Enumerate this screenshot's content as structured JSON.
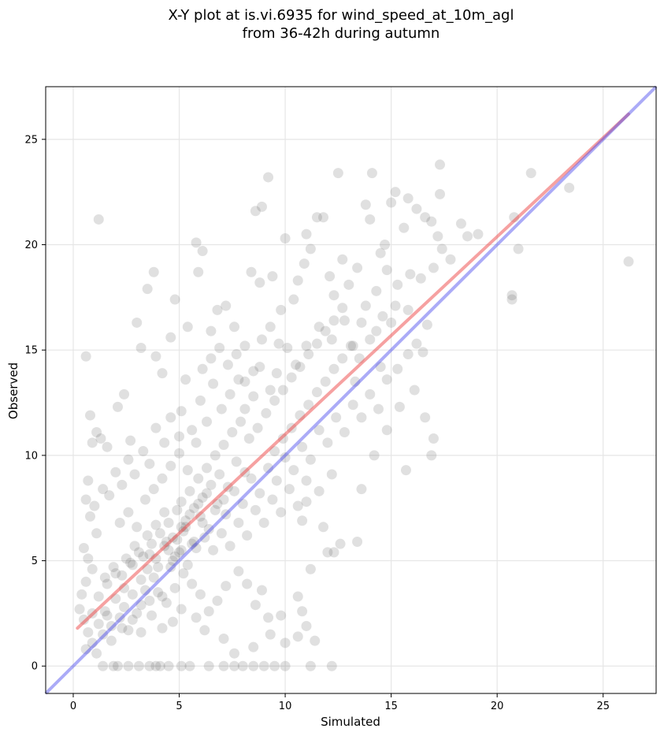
{
  "chart_data": {
    "type": "scatter",
    "title": "X-Y plot at is.vi.6935 for wind_speed_at_10m_agl",
    "subtitle": "from 36-42h during autumn",
    "xlabel": "Simulated",
    "ylabel": "Observed",
    "xlim": [
      -1.3,
      27.5
    ],
    "ylim": [
      -1.3,
      27.5
    ],
    "x_ticks": [
      0,
      5,
      10,
      15,
      20,
      25
    ],
    "y_ticks": [
      0,
      5,
      10,
      15,
      20,
      25
    ],
    "grid": true,
    "colors": {
      "points": "#555555",
      "fit_line": "#ee4444",
      "identity_line": "#4444ee"
    },
    "fit_line": {
      "x": [
        0.2,
        26.2
      ],
      "y": [
        1.8,
        26.2
      ]
    },
    "identity_line": {
      "x": [
        -1.3,
        27.5
      ],
      "y": [
        -1.3,
        27.5
      ]
    },
    "points": [
      [
        1.2,
        21.2
      ],
      [
        0.6,
        14.7
      ],
      [
        0.8,
        11.9
      ],
      [
        1.1,
        11.1
      ],
      [
        1.3,
        10.8
      ],
      [
        1.6,
        10.4
      ],
      [
        0.9,
        10.6
      ],
      [
        2.1,
        12.3
      ],
      [
        2.4,
        12.9
      ],
      [
        2.7,
        10.7
      ],
      [
        3.0,
        16.3
      ],
      [
        3.2,
        15.1
      ],
      [
        3.5,
        17.9
      ],
      [
        3.9,
        14.7
      ],
      [
        3.8,
        18.7
      ],
      [
        4.2,
        13.9
      ],
      [
        4.6,
        15.6
      ],
      [
        4.8,
        17.4
      ],
      [
        5.1,
        12.1
      ],
      [
        5.4,
        16.1
      ],
      [
        5.8,
        20.1
      ],
      [
        6.1,
        19.7
      ],
      [
        5.9,
        18.7
      ],
      [
        6.5,
        15.9
      ],
      [
        6.8,
        16.9
      ],
      [
        7.2,
        17.1
      ],
      [
        7.6,
        16.1
      ],
      [
        8.1,
        15.2
      ],
      [
        8.4,
        18.7
      ],
      [
        8.6,
        21.6
      ],
      [
        8.9,
        21.8
      ],
      [
        9.2,
        23.2
      ],
      [
        9.4,
        18.5
      ],
      [
        8.8,
        18.2
      ],
      [
        9.8,
        16.9
      ],
      [
        10.0,
        20.3
      ],
      [
        10.4,
        17.4
      ],
      [
        10.6,
        18.3
      ],
      [
        10.9,
        19.1
      ],
      [
        11.0,
        20.5
      ],
      [
        11.2,
        19.8
      ],
      [
        11.5,
        21.3
      ],
      [
        11.8,
        21.3
      ],
      [
        12.1,
        18.5
      ],
      [
        12.3,
        17.6
      ],
      [
        12.5,
        23.4
      ],
      [
        12.7,
        19.3
      ],
      [
        13.0,
        18.1
      ],
      [
        13.4,
        18.9
      ],
      [
        13.8,
        21.9
      ],
      [
        14.0,
        21.2
      ],
      [
        14.1,
        23.4
      ],
      [
        14.5,
        19.6
      ],
      [
        14.7,
        20.0
      ],
      [
        15.0,
        22.0
      ],
      [
        15.2,
        22.5
      ],
      [
        15.6,
        20.8
      ],
      [
        15.8,
        22.2
      ],
      [
        16.2,
        21.7
      ],
      [
        16.6,
        21.3
      ],
      [
        16.9,
        21.1
      ],
      [
        17.2,
        20.4
      ],
      [
        17.3,
        23.8
      ],
      [
        17.3,
        22.4
      ],
      [
        17.8,
        19.3
      ],
      [
        18.3,
        21.0
      ],
      [
        18.6,
        20.4
      ],
      [
        19.1,
        20.5
      ],
      [
        20.8,
        21.3
      ],
      [
        21.6,
        23.4
      ],
      [
        23.4,
        22.7
      ],
      [
        26.2,
        19.2
      ],
      [
        20.7,
        17.6
      ],
      [
        20.7,
        17.4
      ],
      [
        21.0,
        19.8
      ],
      [
        17.4,
        19.8
      ],
      [
        17.0,
        18.9
      ],
      [
        16.4,
        18.4
      ],
      [
        15.9,
        18.6
      ],
      [
        15.2,
        17.1
      ],
      [
        14.6,
        16.6
      ],
      [
        14.3,
        15.9
      ],
      [
        13.6,
        16.3
      ],
      [
        13.2,
        15.2
      ],
      [
        12.8,
        16.4
      ],
      [
        12.2,
        15.5
      ],
      [
        11.6,
        16.1
      ],
      [
        11.0,
        15.2
      ],
      [
        10.5,
        14.3
      ],
      [
        10.1,
        15.1
      ],
      [
        9.6,
        13.9
      ],
      [
        9.3,
        13.1
      ],
      [
        8.8,
        14.2
      ],
      [
        8.5,
        12.8
      ],
      [
        8.1,
        12.2
      ],
      [
        7.8,
        13.6
      ],
      [
        7.4,
        12.9
      ],
      [
        7.0,
        12.2
      ],
      [
        6.6,
        13.4
      ],
      [
        6.3,
        11.6
      ],
      [
        6.0,
        12.6
      ],
      [
        5.6,
        11.2
      ],
      [
        5.3,
        13.6
      ],
      [
        5.0,
        10.9
      ],
      [
        4.6,
        11.8
      ],
      [
        4.3,
        10.6
      ],
      [
        3.9,
        11.3
      ],
      [
        3.6,
        9.6
      ],
      [
        3.3,
        10.2
      ],
      [
        2.9,
        9.1
      ],
      [
        2.6,
        9.8
      ],
      [
        2.3,
        8.6
      ],
      [
        2.0,
        9.2
      ],
      [
        1.7,
        8.1
      ],
      [
        1.4,
        8.4
      ],
      [
        1.0,
        7.6
      ],
      [
        0.7,
        8.8
      ],
      [
        0.6,
        7.9
      ],
      [
        0.8,
        7.1
      ],
      [
        1.1,
        6.3
      ],
      [
        0.5,
        5.6
      ],
      [
        0.7,
        5.1
      ],
      [
        0.9,
        4.6
      ],
      [
        0.6,
        4.0
      ],
      [
        0.4,
        3.4
      ],
      [
        0.3,
        2.7
      ],
      [
        0.5,
        2.2
      ],
      [
        0.7,
        1.6
      ],
      [
        0.9,
        1.1
      ],
      [
        1.1,
        0.6
      ],
      [
        0.6,
        0.8
      ],
      [
        1.4,
        0.0
      ],
      [
        1.9,
        0.0
      ],
      [
        2.1,
        0.0
      ],
      [
        2.6,
        0.0
      ],
      [
        3.1,
        0.0
      ],
      [
        3.6,
        0.0
      ],
      [
        3.9,
        0.0
      ],
      [
        4.1,
        0.0
      ],
      [
        4.5,
        0.0
      ],
      [
        5.1,
        0.0
      ],
      [
        5.5,
        0.0
      ],
      [
        6.4,
        0.0
      ],
      [
        7.1,
        0.0
      ],
      [
        7.6,
        0.0
      ],
      [
        8.0,
        0.0
      ],
      [
        8.5,
        0.0
      ],
      [
        9.0,
        0.0
      ],
      [
        9.5,
        0.0
      ],
      [
        10.0,
        0.0
      ],
      [
        11.2,
        0.0
      ],
      [
        12.2,
        0.0
      ],
      [
        7.6,
        0.6
      ],
      [
        8.5,
        0.9
      ],
      [
        10.0,
        1.1
      ],
      [
        10.6,
        1.4
      ],
      [
        11.0,
        1.9
      ],
      [
        11.4,
        1.2
      ],
      [
        9.3,
        1.5
      ],
      [
        7.1,
        1.3
      ],
      [
        6.2,
        1.7
      ],
      [
        5.8,
        2.3
      ],
      [
        5.1,
        2.7
      ],
      [
        4.7,
        2.1
      ],
      [
        4.2,
        1.8
      ],
      [
        3.7,
        2.4
      ],
      [
        3.2,
        1.6
      ],
      [
        2.8,
        2.2
      ],
      [
        2.3,
        1.8
      ],
      [
        1.8,
        1.2
      ],
      [
        1.5,
        2.6
      ],
      [
        1.2,
        3.3
      ],
      [
        1.6,
        3.9
      ],
      [
        2.0,
        4.4
      ],
      [
        2.4,
        3.7
      ],
      [
        2.8,
        4.8
      ],
      [
        3.2,
        4.1
      ],
      [
        3.6,
        5.3
      ],
      [
        4.0,
        4.7
      ],
      [
        4.4,
        5.9
      ],
      [
        4.8,
        5.2
      ],
      [
        5.2,
        6.4
      ],
      [
        5.6,
        5.8
      ],
      [
        6.0,
        7.1
      ],
      [
        6.4,
        6.5
      ],
      [
        6.8,
        7.7
      ],
      [
        7.2,
        7.2
      ],
      [
        7.6,
        8.3
      ],
      [
        8.0,
        7.7
      ],
      [
        8.4,
        8.9
      ],
      [
        8.8,
        8.2
      ],
      [
        9.2,
        9.4
      ],
      [
        9.6,
        8.8
      ],
      [
        10.0,
        9.9
      ],
      [
        10.4,
        9.3
      ],
      [
        10.8,
        10.4
      ],
      [
        11.2,
        9.8
      ],
      [
        11.6,
        11.2
      ],
      [
        12.0,
        10.6
      ],
      [
        12.4,
        11.8
      ],
      [
        12.8,
        11.1
      ],
      [
        13.2,
        12.4
      ],
      [
        13.6,
        11.8
      ],
      [
        14.0,
        12.9
      ],
      [
        14.4,
        12.2
      ],
      [
        14.8,
        13.6
      ],
      [
        15.3,
        14.1
      ],
      [
        15.8,
        14.8
      ],
      [
        16.2,
        15.3
      ],
      [
        16.7,
        16.2
      ],
      [
        13.6,
        8.4
      ],
      [
        14.2,
        10.0
      ],
      [
        14.8,
        11.2
      ],
      [
        15.4,
        12.3
      ],
      [
        15.7,
        9.3
      ],
      [
        16.9,
        10.0
      ],
      [
        17.0,
        10.8
      ],
      [
        16.6,
        11.8
      ],
      [
        16.1,
        13.1
      ],
      [
        16.5,
        14.9
      ],
      [
        11.2,
        4.6
      ],
      [
        12.0,
        5.4
      ],
      [
        12.6,
        5.8
      ],
      [
        13.4,
        5.9
      ],
      [
        12.3,
        5.4
      ],
      [
        11.8,
        6.6
      ],
      [
        10.8,
        6.9
      ],
      [
        11.0,
        7.8
      ],
      [
        12.2,
        9.1
      ],
      [
        11.6,
        8.3
      ],
      [
        10.6,
        3.3
      ],
      [
        10.8,
        2.6
      ],
      [
        9.8,
        2.4
      ],
      [
        9.2,
        2.3
      ],
      [
        8.6,
        2.9
      ],
      [
        8.9,
        3.6
      ],
      [
        8.2,
        3.9
      ],
      [
        7.8,
        4.5
      ],
      [
        7.2,
        3.8
      ],
      [
        6.8,
        3.1
      ],
      [
        6.4,
        2.6
      ],
      [
        6.0,
        3.4
      ],
      [
        5.6,
        3.9
      ],
      [
        5.2,
        4.4
      ],
      [
        4.8,
        3.7
      ],
      [
        4.4,
        3.0
      ],
      [
        4.0,
        3.5
      ],
      [
        3.6,
        3.1
      ],
      [
        3.2,
        2.9
      ],
      [
        2.8,
        3.4
      ],
      [
        2.4,
        2.8
      ],
      [
        2.0,
        3.2
      ],
      [
        1.6,
        2.4
      ],
      [
        1.2,
        2.0
      ],
      [
        0.9,
        2.5
      ],
      [
        1.4,
        1.5
      ],
      [
        1.8,
        1.9
      ],
      [
        2.2,
        2.3
      ],
      [
        2.6,
        1.7
      ],
      [
        3.0,
        2.5
      ],
      [
        3.4,
        3.6
      ],
      [
        3.8,
        4.2
      ],
      [
        4.2,
        3.3
      ],
      [
        4.6,
        4.7
      ],
      [
        5.0,
        5.4
      ],
      [
        5.4,
        4.8
      ],
      [
        5.8,
        5.6
      ],
      [
        6.2,
        6.1
      ],
      [
        6.6,
        5.5
      ],
      [
        7.0,
        6.3
      ],
      [
        7.4,
        5.7
      ],
      [
        7.8,
        6.8
      ],
      [
        8.2,
        6.2
      ],
      [
        8.6,
        7.4
      ],
      [
        9.0,
        6.8
      ],
      [
        9.4,
        7.9
      ],
      [
        9.8,
        7.3
      ],
      [
        10.2,
        8.4
      ],
      [
        10.6,
        7.6
      ],
      [
        11.0,
        8.8
      ],
      [
        5.1,
        7.8
      ],
      [
        5.5,
        8.3
      ],
      [
        5.9,
        8.9
      ],
      [
        6.3,
        9.4
      ],
      [
        6.7,
        10.0
      ],
      [
        7.1,
        10.5
      ],
      [
        7.5,
        11.1
      ],
      [
        7.9,
        11.6
      ],
      [
        8.3,
        10.8
      ],
      [
        8.7,
        11.3
      ],
      [
        4.5,
        6.8
      ],
      [
        4.9,
        7.4
      ],
      [
        5.3,
        6.9
      ],
      [
        5.7,
        7.5
      ],
      [
        6.1,
        8.0
      ],
      [
        6.5,
        8.6
      ],
      [
        6.9,
        9.1
      ],
      [
        7.3,
        8.5
      ],
      [
        7.7,
        9.7
      ],
      [
        8.1,
        9.2
      ],
      [
        3.5,
        6.2
      ],
      [
        3.9,
        6.7
      ],
      [
        4.3,
        7.3
      ],
      [
        4.7,
        6.1
      ],
      [
        5.1,
        6.6
      ],
      [
        5.5,
        7.2
      ],
      [
        5.9,
        7.7
      ],
      [
        6.3,
        8.2
      ],
      [
        6.7,
        7.4
      ],
      [
        7.1,
        7.9
      ],
      [
        2.5,
        5.1
      ],
      [
        2.9,
        5.7
      ],
      [
        3.3,
        5.2
      ],
      [
        3.7,
        5.8
      ],
      [
        4.1,
        6.3
      ],
      [
        4.5,
        5.5
      ],
      [
        4.9,
        6.0
      ],
      [
        5.3,
        6.6
      ],
      [
        5.7,
        5.9
      ],
      [
        6.1,
        6.8
      ],
      [
        1.5,
        4.2
      ],
      [
        1.9,
        4.7
      ],
      [
        2.3,
        4.3
      ],
      [
        2.7,
        4.9
      ],
      [
        3.1,
        5.4
      ],
      [
        3.5,
        4.6
      ],
      [
        3.9,
        5.1
      ],
      [
        4.3,
        5.7
      ],
      [
        4.7,
        5.0
      ],
      [
        5.1,
        5.5
      ],
      [
        9.5,
        10.2
      ],
      [
        9.9,
        10.8
      ],
      [
        10.3,
        11.3
      ],
      [
        10.7,
        11.9
      ],
      [
        11.1,
        12.4
      ],
      [
        11.5,
        13.0
      ],
      [
        11.9,
        13.5
      ],
      [
        12.3,
        14.1
      ],
      [
        12.7,
        14.6
      ],
      [
        13.1,
        15.2
      ],
      [
        9.1,
        12.0
      ],
      [
        9.5,
        12.6
      ],
      [
        9.9,
        13.1
      ],
      [
        10.3,
        13.7
      ],
      [
        10.7,
        14.2
      ],
      [
        11.1,
        14.8
      ],
      [
        11.5,
        15.3
      ],
      [
        11.9,
        15.9
      ],
      [
        12.3,
        16.4
      ],
      [
        12.7,
        17.0
      ],
      [
        6.1,
        14.1
      ],
      [
        6.5,
        14.6
      ],
      [
        6.9,
        15.1
      ],
      [
        7.3,
        14.3
      ],
      [
        7.7,
        14.8
      ],
      [
        8.1,
        13.5
      ],
      [
        8.5,
        14.0
      ],
      [
        8.9,
        15.5
      ],
      [
        9.3,
        16.1
      ],
      [
        9.7,
        15.3
      ],
      [
        2.2,
        6.8
      ],
      [
        2.6,
        7.3
      ],
      [
        3.0,
        6.6
      ],
      [
        3.4,
        7.9
      ],
      [
        3.8,
        8.4
      ],
      [
        4.2,
        8.9
      ],
      [
        4.6,
        9.5
      ],
      [
        5.0,
        10.1
      ],
      [
        5.4,
        9.3
      ],
      [
        5.8,
        10.6
      ],
      [
        13.5,
        14.6
      ],
      [
        14.0,
        15.5
      ],
      [
        14.5,
        14.2
      ],
      [
        15.0,
        16.3
      ],
      [
        13.3,
        13.5
      ],
      [
        13.8,
        17.1
      ],
      [
        14.3,
        17.8
      ],
      [
        14.8,
        18.8
      ],
      [
        15.3,
        18.1
      ],
      [
        15.8,
        16.9
      ]
    ]
  }
}
